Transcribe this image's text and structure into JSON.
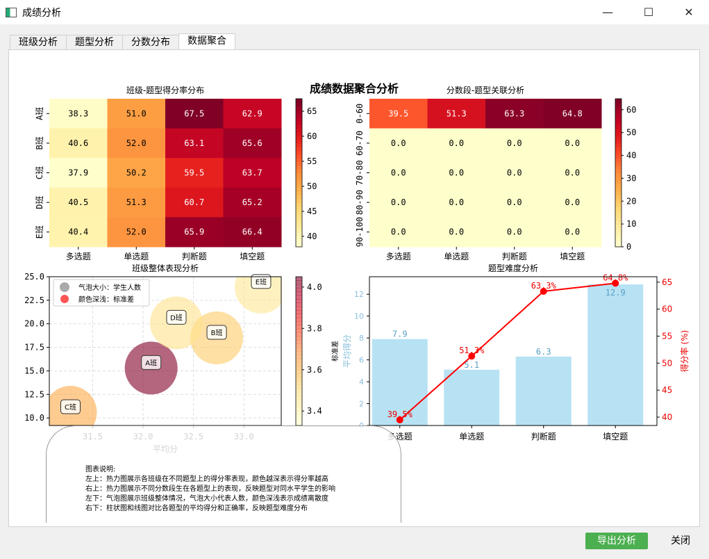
{
  "window": {
    "title": "成绩分析",
    "icon": "app-icon"
  },
  "tabs": [
    {
      "label": "班级分析"
    },
    {
      "label": "题型分析"
    },
    {
      "label": "分数分布"
    },
    {
      "label": "数据聚合",
      "active": true
    }
  ],
  "figure": {
    "suptitle": "成绩数据聚合分析"
  },
  "note": {
    "text": "图表说明:\n左上：热力图展示各班级在不同题型上的得分率表现，颜色越深表示得分率越高\n右上：热力图展示不同分数段生在各题型上的表现，反映题型对同水平学生的影响\n左下：气泡图展示班级整体情况，气泡大小代表人数，颜色深浅表示成绩离散度\n右下：柱状图和线图对比各题型的平均得分和正确率，反映题型难度分布"
  },
  "buttons": {
    "export": "导出分析",
    "close": "关闭"
  },
  "chart_data": [
    {
      "type": "heatmap",
      "title": "班级-题型得分率分布",
      "columns": [
        "多选题",
        "单选题",
        "判断题",
        "填空题"
      ],
      "rows": [
        "A班",
        "B班",
        "C班",
        "D班",
        "E班"
      ],
      "values": [
        [
          38.3,
          51.0,
          67.5,
          62.9
        ],
        [
          40.6,
          52.0,
          63.1,
          65.6
        ],
        [
          37.9,
          50.2,
          59.5,
          63.7
        ],
        [
          40.5,
          51.3,
          60.7,
          65.2
        ],
        [
          40.4,
          52.0,
          65.9,
          66.4
        ]
      ],
      "colormap": "YlOrRd",
      "colorbar_range": [
        37.9,
        67.5
      ],
      "colorbar_ticks": [
        40,
        45,
        50,
        55,
        60,
        65
      ]
    },
    {
      "type": "heatmap",
      "title": "分数段-题型关联分析",
      "columns": [
        "多选题",
        "单选题",
        "判断题",
        "填空题"
      ],
      "rows": [
        "0-60",
        "60-70",
        "70-80",
        "80-90",
        "90-100"
      ],
      "values": [
        [
          39.5,
          51.3,
          63.3,
          64.8
        ],
        [
          0,
          0,
          0,
          0
        ],
        [
          0,
          0,
          0,
          0
        ],
        [
          0,
          0,
          0,
          0
        ],
        [
          0,
          0,
          0,
          0
        ]
      ],
      "colormap": "YlOrRd",
      "colorbar_range": [
        0,
        64.8
      ],
      "colorbar_ticks": [
        0,
        10,
        20,
        30,
        40,
        50,
        60
      ]
    },
    {
      "type": "scatter",
      "title": "班级整体表现分析",
      "xlabel": "平均分",
      "ylabel": "",
      "colorbar_label": "标准差",
      "xlim": [
        31.07,
        33.37
      ],
      "ylim": [
        9.2,
        25.0
      ],
      "xticks": [
        31.5,
        32.0,
        32.5,
        33.0
      ],
      "yticks": [
        10.0,
        12.5,
        15.0,
        17.5,
        20.0,
        22.5,
        25.0
      ],
      "colorbar_range": [
        3.33,
        4.05
      ],
      "colorbar_ticks": [
        3.4,
        3.6,
        3.8,
        4.0
      ],
      "grid": true,
      "legend_placement": "top-left",
      "legend": [
        "气泡大小：学生人数",
        "颜色深浅：标准差"
      ],
      "points": [
        {
          "label": "A班",
          "x": 32.08,
          "y": 15.3,
          "std": 4.05
        },
        {
          "label": "B班",
          "x": 32.73,
          "y": 18.5,
          "std": 3.45
        },
        {
          "label": "C班",
          "x": 31.28,
          "y": 10.6,
          "std": 3.55
        },
        {
          "label": "D班",
          "x": 32.33,
          "y": 20.1,
          "std": 3.36
        },
        {
          "label": "E班",
          "x": 33.17,
          "y": 23.9,
          "std": 3.34
        }
      ]
    },
    {
      "type": "bar",
      "title": "题型难度分析",
      "categories": [
        "多选题",
        "单选题",
        "判断题",
        "填空题"
      ],
      "ylabel": "平均得分",
      "y2label": "得分率 (%)",
      "ylim": [
        0,
        13.6
      ],
      "y2lim": [
        38.45,
        66.0
      ],
      "yticks": [
        0,
        2,
        4,
        6,
        8,
        10,
        12
      ],
      "y2ticks": [
        40,
        45,
        50,
        55,
        60,
        65
      ],
      "series": [
        {
          "name": "平均得分",
          "type": "bar",
          "values": [
            7.9,
            5.1,
            6.3,
            12.9
          ],
          "labels": [
            "7.9",
            "5.1",
            "6.3",
            "12.9"
          ],
          "color": "#87ceeb"
        },
        {
          "name": "得分率",
          "type": "line",
          "values": [
            39.5,
            51.3,
            63.3,
            64.8
          ],
          "labels": [
            "39.5%",
            "51.3%",
            "63.3%",
            "64.8%"
          ],
          "color": "#ff0000"
        }
      ]
    }
  ]
}
